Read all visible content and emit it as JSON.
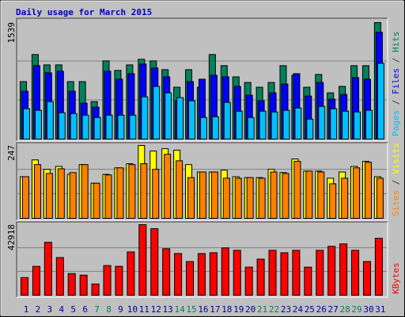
{
  "title": "Daily usage for March 2015",
  "categories": [
    "1",
    "2",
    "3",
    "4",
    "5",
    "6",
    "7",
    "8",
    "9",
    "10",
    "11",
    "12",
    "13",
    "14",
    "15",
    "16",
    "17",
    "18",
    "19",
    "20",
    "21",
    "22",
    "23",
    "24",
    "25",
    "26",
    "27",
    "28",
    "29",
    "30",
    "31"
  ],
  "category_colors": [
    "#0000a0",
    "#0000a0",
    "#0000a0",
    "#0000a0",
    "#0000a0",
    "#0000a0",
    "#00805c",
    "#00805c",
    "#0000a0",
    "#0000a0",
    "#0000a0",
    "#0000a0",
    "#0000a0",
    "#00805c",
    "#00805c",
    "#0000a0",
    "#0000a0",
    "#0000a0",
    "#0000a0",
    "#0000a0",
    "#00805c",
    "#00805c",
    "#0000a0",
    "#0000a0",
    "#0000a0",
    "#0000a0",
    "#0000a0",
    "#00805c",
    "#00805c",
    "#0000a0",
    "#0000a0"
  ],
  "chart_data": [
    {
      "type": "bar",
      "ymax": 1539,
      "separator": " / ",
      "series": [
        {
          "name": "Hits",
          "color": "#00805c",
          "values": [
            759,
            1117,
            980,
            980,
            759,
            759,
            495,
            1033,
            907,
            980,
            1054,
            1033,
            917,
            685,
            917,
            685,
            1117,
            970,
            822,
            748,
            685,
            748,
            970,
            843,
            685,
            854,
            611,
            696,
            970,
            970,
            1539
          ]
        },
        {
          "name": "Files",
          "color": "#0000ff",
          "values": [
            632,
            970,
            875,
            896,
            632,
            474,
            422,
            896,
            791,
            864,
            991,
            938,
            822,
            506,
            759,
            791,
            843,
            822,
            696,
            580,
            506,
            611,
            727,
            864,
            569,
            748,
            527,
            590,
            812,
            791,
            1412
          ]
        },
        {
          "name": "Pages",
          "color": "#00c0ff",
          "values": [
            401,
            380,
            495,
            348,
            337,
            316,
            285,
            316,
            316,
            316,
            559,
            696,
            611,
            548,
            506,
            285,
            295,
            485,
            369,
            285,
            369,
            358,
            380,
            411,
            264,
            432,
            401,
            369,
            358,
            380,
            1001
          ]
        }
      ]
    },
    {
      "type": "bar",
      "ymax": 247,
      "separator": " / ",
      "series": [
        {
          "name": "Visits",
          "color": "#ffff00",
          "values": [
            141,
            198,
            166,
            176,
            149,
            182,
            119,
            149,
            171,
            185,
            247,
            228,
            236,
            231,
            182,
            157,
            157,
            163,
            141,
            138,
            138,
            166,
            155,
            201,
            160,
            160,
            136,
            157,
            176,
            193,
            141
          ]
        },
        {
          "name": "Sites",
          "color": "#ff8000",
          "values": [
            141,
            182,
            152,
            168,
            155,
            182,
            119,
            147,
            171,
            182,
            185,
            166,
            217,
            195,
            138,
            157,
            157,
            136,
            136,
            138,
            136,
            157,
            152,
            193,
            160,
            157,
            117,
            136,
            171,
            190,
            136
          ]
        }
      ]
    },
    {
      "type": "bar",
      "ymax": 42918,
      "separator": " / ",
      "series": [
        {
          "name": "KBytes",
          "color": "#ff0000",
          "values": [
            10730,
            17557,
            32188,
            22922,
            13168,
            12193,
            6828,
            18045,
            17557,
            26336,
            42918,
            40479,
            28287,
            25360,
            20483,
            25360,
            25848,
            28774,
            27311,
            17070,
            21947,
            27311,
            25848,
            27311,
            17070,
            27311,
            29750,
            31213,
            27311,
            20483,
            34627
          ]
        }
      ]
    }
  ]
}
